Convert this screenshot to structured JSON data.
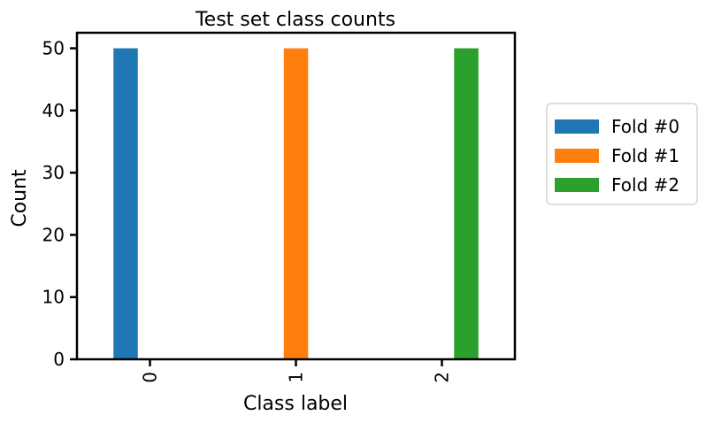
{
  "chart_data": {
    "type": "bar",
    "title": "Test set class counts",
    "xlabel": "Class label",
    "ylabel": "Count",
    "categories": [
      "0",
      "1",
      "2"
    ],
    "series": [
      {
        "name": "Fold #0",
        "color": "#1f77b4",
        "values": [
          50,
          0,
          0
        ]
      },
      {
        "name": "Fold #1",
        "color": "#ff7f0e",
        "values": [
          0,
          50,
          0
        ]
      },
      {
        "name": "Fold #2",
        "color": "#2ca02c",
        "values": [
          0,
          0,
          50
        ]
      }
    ],
    "ylim": [
      0,
      52.5
    ],
    "yticks": [
      0,
      10,
      20,
      30,
      40,
      50
    ],
    "xtick_rotation": 90,
    "grid": false,
    "legend_position": "outside-right"
  }
}
